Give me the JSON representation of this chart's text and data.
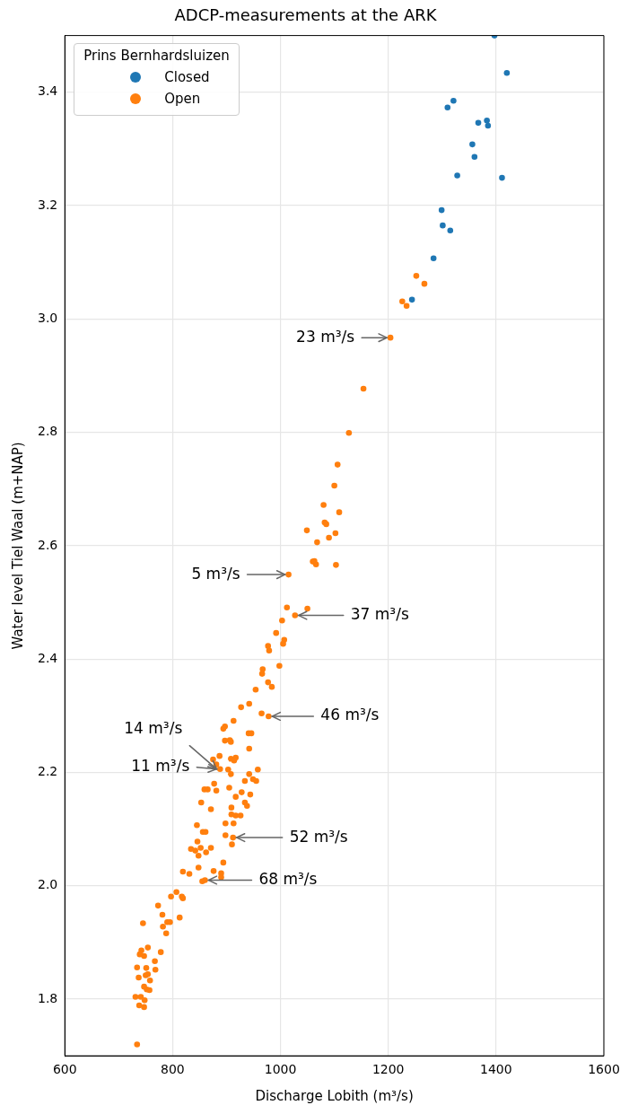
{
  "chart_data": {
    "type": "scatter",
    "title": "ADCP-measurements at the ARK",
    "xlabel": "Discharge Lobith (m³/s)",
    "ylabel": "Water level Tiel Waal (m+NAP)",
    "legend_title": "Prins Bernhardsluizen",
    "legend": "top left",
    "grid": true,
    "marker": "circle",
    "xlim": [
      600,
      1600
    ],
    "xticks": [
      600,
      800,
      1000,
      1200,
      1400,
      1600
    ],
    "ylim": [
      1.7,
      3.5
    ],
    "yticks": [
      1.8,
      {
        "value": 2,
        "label": "2.0"
      },
      2.2,
      2.4,
      2.6,
      2.8,
      {
        "value": 3,
        "label": "3.0"
      },
      3.2,
      3.4
    ],
    "series": [
      {
        "name": "Closed",
        "color": "#1f77b4",
        "x": [
          1397,
          1420,
          1321,
          1310,
          1383,
          1367,
          1385,
          1356,
          1360,
          1328,
          1411,
          1299,
          1301,
          1315,
          1284,
          1244
        ],
        "values": [
          3.5,
          3.434,
          3.385,
          3.373,
          3.35,
          3.346,
          3.341,
          3.308,
          3.286,
          3.253,
          3.249,
          3.192,
          3.165,
          3.156,
          3.107,
          3.034
        ]
      },
      {
        "name": "Open",
        "color": "#ff7f0e",
        "x": [
          1252,
          1267,
          1226,
          1234,
          1204,
          1154,
          1127,
          1106,
          1100,
          1109,
          1102,
          1103,
          1080,
          1082,
          1085,
          1049,
          1090,
          1068,
          1063,
          1066,
          1060,
          1015,
          1012,
          1050,
          1027,
          1003,
          992,
          1007,
          1005,
          977,
          979,
          998,
          967,
          966,
          977,
          984,
          954,
          942,
          927,
          965,
          978,
          913,
          897,
          894,
          941,
          946,
          897,
          906,
          908,
          942,
          887,
          875,
          908,
          917,
          914,
          881,
          888,
          903,
          958,
          908,
          942,
          877,
          949,
          955,
          934,
          859,
          865,
          881,
          905,
          928,
          944,
          917,
          853,
          934,
          938,
          871,
          909,
          909,
          917,
          926,
          845,
          898,
          913,
          856,
          861,
          898,
          912,
          910,
          846,
          834,
          842,
          852,
          848,
          862,
          871,
          894,
          848,
          819,
          831,
          876,
          890,
          890,
          855,
          860,
          807,
          797,
          817,
          819,
          773,
          781,
          813,
          790,
          795,
          745,
          782,
          788,
          754,
          742,
          739,
          747,
          778,
          767,
          734,
          751,
          768,
          737,
          750,
          754,
          758,
          747,
          752,
          757,
          731,
          741,
          748,
          738,
          747,
          734
        ],
        "values": [
          3.076,
          3.062,
          3.031,
          3.023,
          2.967,
          2.877,
          2.799,
          2.743,
          2.706,
          2.659,
          2.622,
          2.566,
          2.672,
          2.641,
          2.638,
          2.627,
          2.614,
          2.606,
          2.573,
          2.567,
          2.572,
          2.549,
          2.491,
          2.489,
          2.477,
          2.468,
          2.446,
          2.434,
          2.427,
          2.423,
          2.415,
          2.388,
          2.382,
          2.374,
          2.359,
          2.351,
          2.346,
          2.321,
          2.315,
          2.304,
          2.299,
          2.291,
          2.281,
          2.277,
          2.269,
          2.269,
          2.256,
          2.257,
          2.254,
          2.242,
          2.229,
          2.223,
          2.224,
          2.226,
          2.221,
          2.214,
          2.206,
          2.205,
          2.205,
          2.197,
          2.197,
          2.18,
          2.188,
          2.185,
          2.185,
          2.17,
          2.17,
          2.168,
          2.173,
          2.165,
          2.161,
          2.157,
          2.147,
          2.147,
          2.141,
          2.135,
          2.138,
          2.126,
          2.124,
          2.124,
          2.107,
          2.11,
          2.11,
          2.095,
          2.095,
          2.089,
          2.085,
          2.073,
          2.078,
          2.065,
          2.062,
          2.067,
          2.053,
          2.059,
          2.067,
          2.041,
          2.032,
          2.025,
          2.021,
          2.026,
          2.022,
          2.015,
          2.008,
          2.01,
          1.989,
          1.981,
          1.981,
          1.978,
          1.965,
          1.949,
          1.944,
          1.936,
          1.936,
          1.934,
          1.928,
          1.916,
          1.891,
          1.886,
          1.879,
          1.876,
          1.883,
          1.867,
          1.856,
          1.855,
          1.852,
          1.838,
          1.842,
          1.844,
          1.833,
          1.822,
          1.817,
          1.816,
          1.804,
          1.804,
          1.798,
          1.789,
          1.786,
          1.72
        ]
      }
    ],
    "annotations": [
      {
        "text": "23 m³/s",
        "x": 1204,
        "y": 2.967
      },
      {
        "text": "5 m³/s",
        "x": 1015,
        "y": 2.549
      },
      {
        "text": "37 m³/s",
        "x": 1027,
        "y": 2.477
      },
      {
        "text": "46 m³/s",
        "x": 978,
        "y": 2.299
      },
      {
        "text": "14 m³/s",
        "x": 888,
        "y": 2.206
      },
      {
        "text": "11 m³/s",
        "x": 888,
        "y": 2.206
      },
      {
        "text": "52 m³/s",
        "x": 912,
        "y": 2.085
      },
      {
        "text": "68 m³/s",
        "x": 860,
        "y": 2.01
      }
    ]
  }
}
